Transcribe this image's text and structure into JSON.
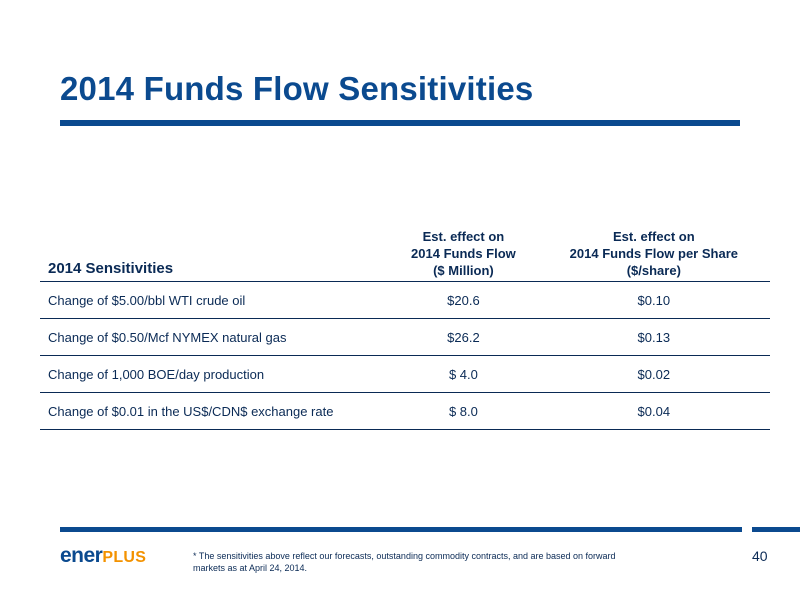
{
  "slide": {
    "title": "2014 Funds Flow Sensitivities",
    "page_number": "40"
  },
  "table": {
    "headers": {
      "label": "2014 Sensitivities",
      "col1": [
        "Est. effect on",
        "2014 Funds Flow",
        "($ Million)"
      ],
      "col2": [
        "Est. effect on",
        "2014 Funds Flow per Share",
        "($/share)"
      ]
    },
    "rows": [
      {
        "label": "Change of $5.00/bbl WTI crude oil",
        "funds_flow": "$20.6",
        "per_share": "$0.10"
      },
      {
        "label": "Change of $0.50/Mcf NYMEX natural gas",
        "funds_flow": "$26.2",
        "per_share": "$0.13"
      },
      {
        "label": "Change of 1,000 BOE/day production",
        "funds_flow": "$ 4.0",
        "per_share": "$0.02"
      },
      {
        "label": "Change of $0.01 in the US$/CDN$ exchange rate",
        "funds_flow": "$ 8.0",
        "per_share": "$0.04"
      }
    ]
  },
  "footer": {
    "logo_part1": "ener",
    "logo_part2": "PLUS",
    "footnote_line1": "* The sensitivities above reflect our forecasts, outstanding commodity contracts, and are based on forward",
    "footnote_line2": "markets as at April 24, 2014."
  },
  "colors": {
    "brand_blue": "#0b4a8f",
    "text_navy": "#0a2a55",
    "brand_orange": "#f39200"
  }
}
